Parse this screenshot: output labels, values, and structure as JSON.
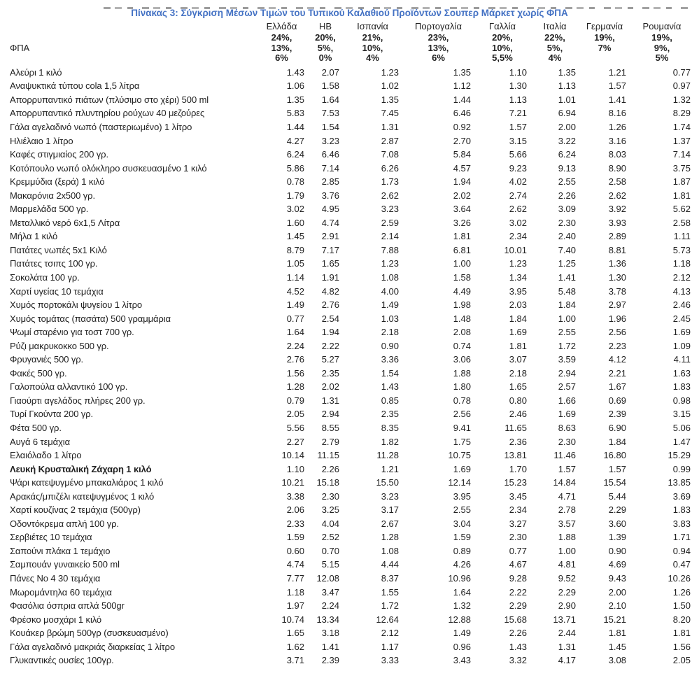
{
  "title": "Πίνακας 3: Σύγκριση Μέσων Τιμών του Τυπικού Καλαθιού Προϊόντων Σουπερ Μάρκετ χωρίς ΦΠΑ",
  "vat_label": "ΦΠΑ",
  "colors": {
    "title_blue": "#4472C4",
    "text": "#212121"
  },
  "columns": [
    "Ελλάδα",
    "ΗΒ",
    "Ισπανία",
    "Πορτογαλία",
    "Γαλλία",
    "Ιταλία",
    "Γερμανία",
    "Ρουμανία"
  ],
  "vat_rates": [
    [
      "24%,",
      "13%,",
      "6%"
    ],
    [
      "20%,",
      "5%,",
      "0%"
    ],
    [
      "21%,",
      "10%,",
      "4%"
    ],
    [
      "23%,",
      "13%,",
      "6%"
    ],
    [
      "20%,",
      "10%,",
      "5,5%"
    ],
    [
      "22%,",
      "5%,",
      "4%"
    ],
    [
      "19%,",
      "7%"
    ],
    [
      "19%,",
      "9%,",
      "5%"
    ]
  ],
  "rows": [
    {
      "name": "Αλεύρι 1 κιλό",
      "values": [
        "1.43",
        "2.07",
        "1.23",
        "1.35",
        "1.10",
        "1.35",
        "1.21",
        "0.77"
      ]
    },
    {
      "name": "Αναψυκτικά τύπου cola 1,5 λίτρα",
      "values": [
        "1.06",
        "1.58",
        "1.02",
        "1.12",
        "1.30",
        "1.13",
        "1.57",
        "0.97"
      ]
    },
    {
      "name": "Απορρυπαντικό πιάτων (πλύσιμο στο χέρι) 500 ml",
      "values": [
        "1.35",
        "1.64",
        "1.35",
        "1.44",
        "1.13",
        "1.01",
        "1.41",
        "1.32"
      ]
    },
    {
      "name": "Απορρυπαντικό πλυντηρίου ρούχων 40 μεζούρες",
      "values": [
        "5.83",
        "7.53",
        "7.45",
        "6.46",
        "7.21",
        "6.94",
        "8.16",
        "8.29"
      ]
    },
    {
      "name": "Γάλα αγελαδινό νωπό (παστεριωμένο) 1 λίτρο",
      "values": [
        "1.44",
        "1.54",
        "1.31",
        "0.92",
        "1.57",
        "2.00",
        "1.26",
        "1.74"
      ]
    },
    {
      "name": "Ηλιέλαιο 1 λίτρο",
      "values": [
        "4.27",
        "3.23",
        "2.87",
        "2.70",
        "3.15",
        "3.22",
        "3.16",
        "1.37"
      ]
    },
    {
      "name": "Καφές στιγμιαίος 200 γρ.",
      "values": [
        "6.24",
        "6.46",
        "7.08",
        "5.84",
        "5.66",
        "6.24",
        "8.03",
        "7.14"
      ]
    },
    {
      "name": "Κοτόπουλο νωπό ολόκληρο συσκευασμένο 1 κιλό",
      "values": [
        "5.86",
        "7.14",
        "6.26",
        "4.57",
        "9.23",
        "9.13",
        "8.90",
        "3.75"
      ]
    },
    {
      "name": "Κρεμμύδια (ξερά) 1 κιλό",
      "values": [
        "0.78",
        "2.85",
        "1.73",
        "1.94",
        "4.02",
        "2.55",
        "2.58",
        "1.87"
      ]
    },
    {
      "name": "Μακαρόνια 2x500 γρ.",
      "values": [
        "1.79",
        "3.76",
        "2.62",
        "2.02",
        "2.74",
        "2.26",
        "2.62",
        "1.81"
      ]
    },
    {
      "name": "Μαρμελάδα 500 γρ.",
      "values": [
        "3.02",
        "4.95",
        "3.23",
        "3.64",
        "2.62",
        "3.09",
        "3.92",
        "5.62"
      ]
    },
    {
      "name": "Μεταλλικό νερό 6x1,5 Λίτρα",
      "values": [
        "1.60",
        "4.74",
        "2.59",
        "3.26",
        "3.02",
        "2.30",
        "3.93",
        "2.58"
      ]
    },
    {
      "name": "Μήλα 1 κιλό",
      "values": [
        "1.45",
        "2.91",
        "2.14",
        "1.81",
        "2.34",
        "2.40",
        "2.89",
        "1.11"
      ]
    },
    {
      "name": "Πατάτες νωπές 5x1 Κιλό",
      "values": [
        "8.79",
        "7.17",
        "7.88",
        "6.81",
        "10.01",
        "7.40",
        "8.81",
        "5.73"
      ]
    },
    {
      "name": "Πατάτες τσιπς 100 γρ.",
      "values": [
        "1.05",
        "1.65",
        "1.23",
        "1.00",
        "1.23",
        "1.25",
        "1.36",
        "1.18"
      ]
    },
    {
      "name": "Σοκολάτα 100 γρ.",
      "values": [
        "1.14",
        "1.91",
        "1.08",
        "1.58",
        "1.34",
        "1.41",
        "1.30",
        "2.12"
      ]
    },
    {
      "name": "Χαρτί υγείας 10 τεμάχια",
      "values": [
        "4.52",
        "4.82",
        "4.00",
        "4.49",
        "3.95",
        "5.48",
        "3.78",
        "4.13"
      ]
    },
    {
      "name": "Χυμός πορτοκάλι ψυγείου 1 λίτρο",
      "values": [
        "1.49",
        "2.76",
        "1.49",
        "1.98",
        "2.03",
        "1.84",
        "2.97",
        "2.46"
      ]
    },
    {
      "name": "Χυμός τομάτας (πασάτα) 500 γραμμάρια",
      "values": [
        "0.77",
        "2.54",
        "1.03",
        "1.48",
        "1.84",
        "1.00",
        "1.96",
        "2.45"
      ]
    },
    {
      "name": "Ψωμί σταρένιο για τοστ 700 γρ.",
      "values": [
        "1.64",
        "1.94",
        "2.18",
        "2.08",
        "1.69",
        "2.55",
        "2.56",
        "1.69"
      ]
    },
    {
      "name": "Ρύζι μακρυκοκκο 500 γρ.",
      "values": [
        "2.24",
        "2.22",
        "0.90",
        "0.74",
        "1.81",
        "1.72",
        "2.23",
        "1.09"
      ]
    },
    {
      "name": "Φρυγανιές 500 γρ.",
      "values": [
        "2.76",
        "5.27",
        "3.36",
        "3.06",
        "3.07",
        "3.59",
        "4.12",
        "4.11"
      ]
    },
    {
      "name": "Φακές 500 γρ.",
      "values": [
        "1.56",
        "2.35",
        "1.54",
        "1.88",
        "2.18",
        "2.94",
        "2.21",
        "1.63"
      ]
    },
    {
      "name": "Γαλοπούλα αλλαντικό 100 γρ.",
      "values": [
        "1.28",
        "2.02",
        "1.43",
        "1.80",
        "1.65",
        "2.57",
        "1.67",
        "1.83"
      ]
    },
    {
      "name": "Γιαούρτι αγελάδος πλήρες 200 γρ.",
      "values": [
        "0.79",
        "1.31",
        "0.85",
        "0.78",
        "0.80",
        "1.66",
        "0.69",
        "0.98"
      ]
    },
    {
      "name": "Τυρί Γκούντα 200 γρ.",
      "values": [
        "2.05",
        "2.94",
        "2.35",
        "2.56",
        "2.46",
        "1.69",
        "2.39",
        "3.15"
      ]
    },
    {
      "name": "Φέτα 500 γρ.",
      "values": [
        "5.56",
        "8.55",
        "8.35",
        "9.41",
        "11.65",
        "8.63",
        "6.90",
        "5.06"
      ]
    },
    {
      "name": "Αυγά 6 τεμάχια",
      "values": [
        "2.27",
        "2.79",
        "1.82",
        "1.75",
        "2.36",
        "2.30",
        "1.84",
        "1.47"
      ]
    },
    {
      "name": "Ελαιόλαδο 1 λίτρο",
      "values": [
        "10.14",
        "11.15",
        "11.28",
        "10.75",
        "13.81",
        "11.46",
        "16.80",
        "15.29"
      ]
    },
    {
      "name": "Λευκή Κρυσταλική Ζάχαρη 1 κιλό",
      "bold": true,
      "values": [
        "1.10",
        "2.26",
        "1.21",
        "1.69",
        "1.70",
        "1.57",
        "1.57",
        "0.99"
      ]
    },
    {
      "name": "Ψάρι κατεψυγμένο μπακαλιάρος 1 κιλό",
      "values": [
        "10.21",
        "15.18",
        "15.50",
        "12.14",
        "15.23",
        "14.84",
        "15.54",
        "13.85"
      ]
    },
    {
      "name": "Αρακάς/μπιζέλι κατεψυγμένος 1 κιλό",
      "values": [
        "3.38",
        "2.30",
        "3.23",
        "3.95",
        "3.45",
        "4.71",
        "5.44",
        "3.69"
      ]
    },
    {
      "name": "Χαρτί κουζίνας 2 τεμάχια (500γρ)",
      "values": [
        "2.06",
        "3.25",
        "3.17",
        "2.55",
        "2.34",
        "2.78",
        "2.29",
        "1.83"
      ]
    },
    {
      "name": "Οδοντόκρεμα απλή 100 γρ.",
      "values": [
        "2.33",
        "4.04",
        "2.67",
        "3.04",
        "3.27",
        "3.57",
        "3.60",
        "3.83"
      ]
    },
    {
      "name": "Σερβιέτες 10 τεμάχια",
      "values": [
        "1.59",
        "2.52",
        "1.28",
        "1.59",
        "2.30",
        "1.88",
        "1.39",
        "1.71"
      ]
    },
    {
      "name": "Σαπούνι  πλάκα 1 τεμάχιο",
      "values": [
        "0.60",
        "0.70",
        "1.08",
        "0.89",
        "0.77",
        "1.00",
        "0.90",
        "0.94"
      ]
    },
    {
      "name": "Σαμπουάν γυναικείο 500 ml",
      "values": [
        "4.74",
        "5.15",
        "4.44",
        "4.26",
        "4.67",
        "4.81",
        "4.69",
        "0.47"
      ]
    },
    {
      "name": "Πάνες Νο 4 30 τεμάχια",
      "values": [
        "7.77",
        "12.08",
        "8.37",
        "10.96",
        "9.28",
        "9.52",
        "9.43",
        "10.26"
      ]
    },
    {
      "name": "Μωρομάντηλα 60 τεμάχια",
      "values": [
        "1.18",
        "3.47",
        "1.55",
        "1.64",
        "2.22",
        "2.29",
        "2.00",
        "1.26"
      ]
    },
    {
      "name": "Φασόλια όσπρια απλά 500gr",
      "values": [
        "1.97",
        "2.24",
        "1.72",
        "1.32",
        "2.29",
        "2.90",
        "2.10",
        "1.50"
      ]
    },
    {
      "name": "Φρέσκο μοσχάρι 1 κιλό",
      "values": [
        "10.74",
        "13.34",
        "12.64",
        "12.88",
        "15.68",
        "13.71",
        "15.21",
        "8.20"
      ]
    },
    {
      "name": "Κουάκερ βρώμη 500γρ (συσκευασμένο)",
      "values": [
        "1.65",
        "3.18",
        "2.12",
        "1.49",
        "2.26",
        "2.44",
        "1.81",
        "1.81"
      ]
    },
    {
      "name": "Γάλα αγελαδινό μακριάς διαρκείας 1 λίτρο",
      "values": [
        "1.62",
        "1.41",
        "1.17",
        "0.96",
        "1.43",
        "1.31",
        "1.45",
        "1.56"
      ]
    },
    {
      "name": "Γλυκαντικές ουσίες 100γρ.",
      "values": [
        "3.71",
        "2.39",
        "3.33",
        "3.43",
        "3.32",
        "4.17",
        "3.08",
        "2.05"
      ]
    }
  ]
}
